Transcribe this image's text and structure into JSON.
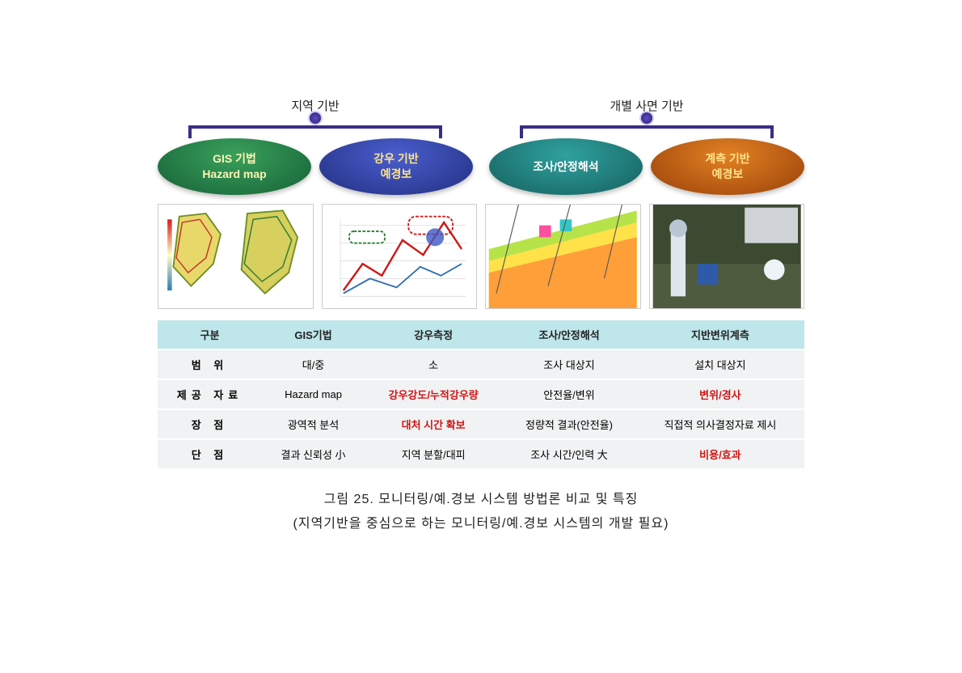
{
  "branches": {
    "left": {
      "title": "지역 기반",
      "bracket_color": "#3a2c86",
      "ellipses": [
        {
          "style": "green",
          "line1": "GIS 기법",
          "line2": "Hazard map"
        },
        {
          "style": "blue",
          "line1": "강우 기반",
          "line2": "예경보"
        }
      ]
    },
    "right": {
      "title": "개별 사면 기반",
      "bracket_color": "#3a2c86",
      "ellipses": [
        {
          "style": "teal",
          "line1": "조사/안정해석",
          "line2": ""
        },
        {
          "style": "orange",
          "line1": "계측 기반",
          "line2": "예경보"
        }
      ]
    }
  },
  "table": {
    "header_bg": "#bfe6ea",
    "row_bg": "#f1f2f3",
    "red": "#d01515",
    "columns": [
      "구분",
      "GIS기법",
      "강우측정",
      "조사/안정해석",
      "지반변위계측"
    ],
    "rows": [
      {
        "label": "범   위",
        "cells": [
          {
            "text": "대/중",
            "red": false
          },
          {
            "text": "소",
            "red": false
          },
          {
            "text": "조사 대상지",
            "red": false
          },
          {
            "text": "설치 대상지",
            "red": false
          }
        ]
      },
      {
        "label": "제공 자료",
        "cells": [
          {
            "text": "Hazard map",
            "red": false
          },
          {
            "text": "강우강도/누적강우량",
            "red": true
          },
          {
            "text": "안전율/변위",
            "red": false
          },
          {
            "text": "변위/경사",
            "red": true
          }
        ]
      },
      {
        "label": "장   점",
        "cells": [
          {
            "text": "광역적 분석",
            "red": false
          },
          {
            "text": "대처 시간 확보",
            "red": true
          },
          {
            "text": "정량적 결과(안전율)",
            "red": false
          },
          {
            "text": "직접적 의사결정자료 제시",
            "red": false
          }
        ]
      },
      {
        "label": "단   점",
        "cells": [
          {
            "text": "결과 신뢰성 小",
            "red": false
          },
          {
            "text": "지역 분할/대피",
            "red": false
          },
          {
            "text": "조사 시간/인력 大",
            "red": false
          },
          {
            "text": "비용/효과",
            "red": true
          }
        ]
      }
    ]
  },
  "caption": {
    "line1": "그림 25.  모니터링/예.경보  시스템  방법론  비교  및  특징",
    "line2": "(지역기반을  중심으로  하는  모니터링/예.경보  시스템의  개발  필요)"
  },
  "thumb_icons": [
    "hazard-map",
    "rain-chart",
    "slope-section",
    "sensor-photo"
  ]
}
